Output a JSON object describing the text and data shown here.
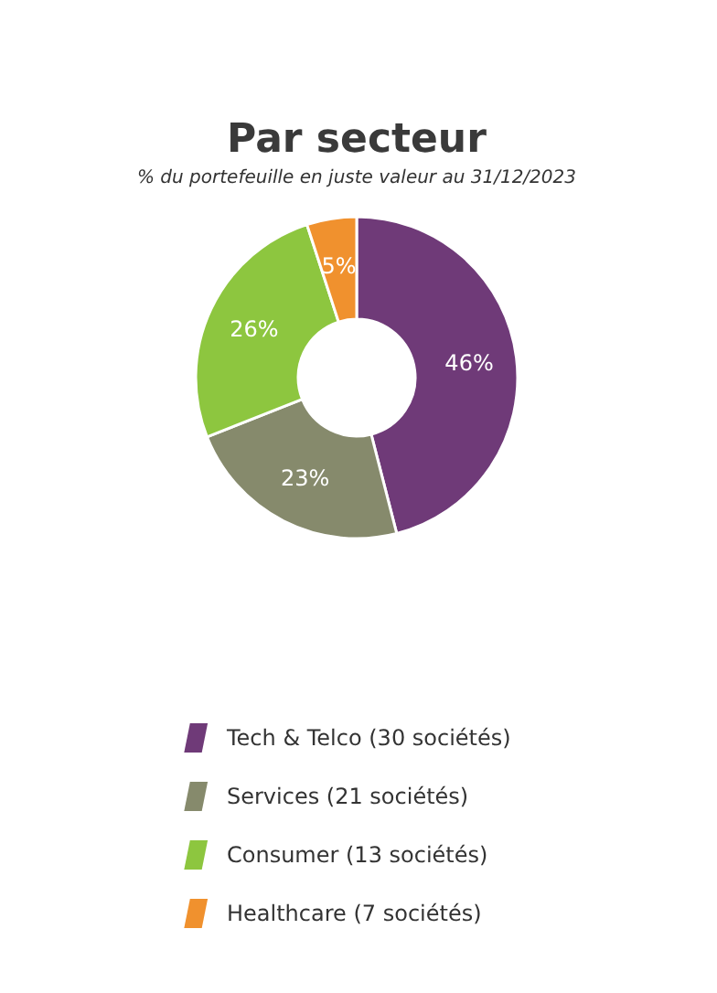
{
  "chart_data": {
    "type": "donut",
    "title": "Par secteur",
    "subtitle": "% du portefeuille en juste valeur au 31/12/2023",
    "categories": [
      "Tech & Telco (30 sociétés)",
      "Services (21 sociétés)",
      "Consumer (13 sociétés)",
      "Healthcare (7 sociétés)"
    ],
    "values": [
      46,
      23,
      26,
      5
    ],
    "value_labels": [
      "46%",
      "23%",
      "26%",
      "5%"
    ],
    "colors": [
      "#6f3a78",
      "#868a6c",
      "#8dc63f",
      "#f0912e"
    ],
    "legend": "bottom"
  }
}
